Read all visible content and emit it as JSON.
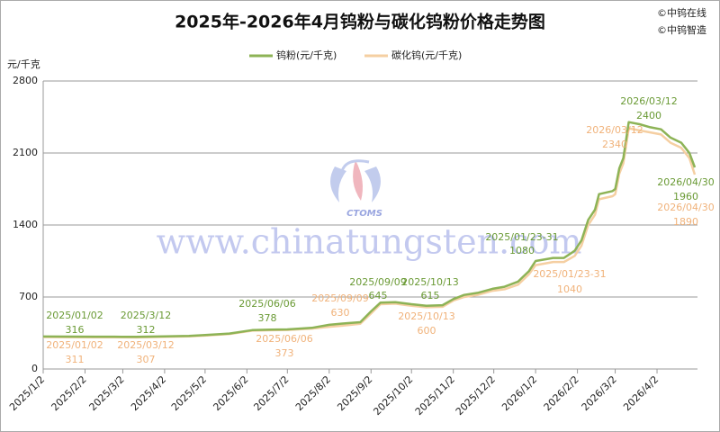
{
  "chart_data": {
    "type": "line",
    "title": "2025年-2026年4月钨粉与碳化钨粉价格走势图",
    "credits": [
      "©中钨在线",
      "©中钨智造"
    ],
    "watermark": "www.chinatungsten.com",
    "watermark_logo": "CTOMS",
    "y_label": "元/千克",
    "grid": true,
    "legend": "top",
    "xlim": [
      "2025/1/2",
      "2026/5/2"
    ],
    "xticks": [
      "2025/1/2",
      "2025/2/2",
      "2025/3/2",
      "2025/4/2",
      "2025/5/2",
      "2025/6/2",
      "2025/7/2",
      "2025/8/2",
      "2025/9/2",
      "2025/10/2",
      "2025/11/2",
      "2025/12/2",
      "2026/1/2",
      "2026/2/2",
      "2026/3/2",
      "2026/4/2"
    ],
    "ylim": [
      0,
      2800
    ],
    "yticks": [
      0,
      700,
      1400,
      2100,
      2800
    ],
    "x": [
      "2025/1/2",
      "2025/1/20",
      "2025/2/10",
      "2025/3/1",
      "2025/3/12",
      "2025/4/2",
      "2025/4/20",
      "2025/5/2",
      "2025/5/20",
      "2025/6/6",
      "2025/6/20",
      "2025/7/2",
      "2025/7/20",
      "2025/8/2",
      "2025/8/15",
      "2025/8/25",
      "2025/9/2",
      "2025/9/9",
      "2025/9/20",
      "2025/10/2",
      "2025/10/13",
      "2025/10/25",
      "2025/11/2",
      "2025/11/10",
      "2025/11/20",
      "2025/12/1",
      "2025/12/10",
      "2025/12/20",
      "2025/12/28",
      "2026/1/2",
      "2026/1/15",
      "2026/1/23",
      "2026/1/31",
      "2026/2/5",
      "2026/2/10",
      "2026/2/15",
      "2026/2/18",
      "2026/2/28",
      "2026/3/2",
      "2026/3/5",
      "2026/3/8",
      "2026/3/12",
      "2026/3/20",
      "2026/3/28",
      "2026/4/5",
      "2026/4/12",
      "2026/4/20",
      "2026/4/26",
      "2026/4/30"
    ],
    "series": [
      {
        "name": "钨粉(元/千克)",
        "color": "#8db356",
        "label_color": "#6a9a35",
        "values": [
          316,
          315,
          314,
          313,
          312,
          318,
          322,
          330,
          345,
          378,
          382,
          385,
          400,
          430,
          445,
          455,
          560,
          645,
          650,
          630,
          615,
          620,
          680,
          720,
          740,
          780,
          800,
          850,
          950,
          1050,
          1080,
          1080,
          1150,
          1250,
          1450,
          1550,
          1700,
          1730,
          1750,
          1950,
          2050,
          2400,
          2380,
          2350,
          2330,
          2250,
          2200,
          2100,
          1960
        ],
        "annotations": [
          {
            "label": "2025/01/02",
            "value": 316
          },
          {
            "label": "2025/3/12",
            "value": 312
          },
          {
            "label": "2025/06/06",
            "value": 378
          },
          {
            "label": "2025/09/09",
            "value": 645
          },
          {
            "label": "2025/10/13",
            "value": 615
          },
          {
            "label": "2025/01/23-31",
            "value": 1080
          },
          {
            "label": "2026/03/12",
            "value": 2400
          },
          {
            "label": "2026/04/30",
            "value": 1960
          }
        ]
      },
      {
        "name": "碳化钨(元/千克)",
        "color": "#f5cfa2",
        "label_color": "#f0b27a",
        "values": [
          311,
          310,
          309,
          308,
          307,
          313,
          317,
          325,
          340,
          373,
          377,
          380,
          393,
          410,
          425,
          440,
          540,
          630,
          635,
          615,
          600,
          605,
          665,
          700,
          720,
          760,
          775,
          820,
          920,
          1010,
          1040,
          1040,
          1100,
          1200,
          1400,
          1500,
          1650,
          1680,
          1700,
          1900,
          2000,
          2340,
          2320,
          2300,
          2280,
          2200,
          2150,
          2050,
          1890
        ],
        "annotations": [
          {
            "label": "2025/01/02",
            "value": 311
          },
          {
            "label": "2025/03/12",
            "value": 307
          },
          {
            "label": "2025/06/06",
            "value": 373
          },
          {
            "label": "2025/09/09",
            "value": 630
          },
          {
            "label": "2025/10/13",
            "value": 600
          },
          {
            "label": "2025/01/23-31",
            "value": 1040
          },
          {
            "label": "2026/03/12",
            "value": 2340
          },
          {
            "label": "2026/04/30",
            "value": 1890
          }
        ]
      }
    ]
  }
}
